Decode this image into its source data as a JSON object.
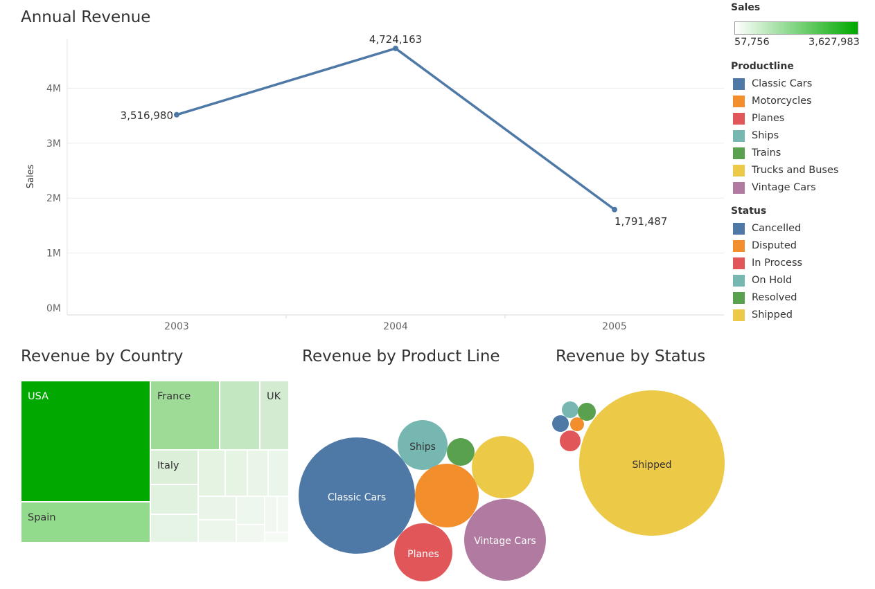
{
  "titles": {
    "annual": "Annual Revenue",
    "country": "Revenue by Country",
    "product": "Revenue by Product Line",
    "status": "Revenue by Status"
  },
  "legend": {
    "sales_title": "Sales",
    "sales_min": "57,756",
    "sales_max": "3,627,983",
    "gradient_colors": [
      "#ffffff",
      "#00a800"
    ],
    "productline_title": "Productline",
    "productline_items": [
      {
        "label": "Classic Cars",
        "color": "#4e79a7"
      },
      {
        "label": "Motorcycles",
        "color": "#f28e2b"
      },
      {
        "label": "Planes",
        "color": "#e15759"
      },
      {
        "label": "Ships",
        "color": "#76b7b2"
      },
      {
        "label": "Trains",
        "color": "#59a14f"
      },
      {
        "label": "Trucks and Buses",
        "color": "#edc948"
      },
      {
        "label": "Vintage Cars",
        "color": "#b07aa1"
      }
    ],
    "status_title": "Status",
    "status_items": [
      {
        "label": "Cancelled",
        "color": "#4e79a7"
      },
      {
        "label": "Disputed",
        "color": "#f28e2b"
      },
      {
        "label": "In Process",
        "color": "#e15759"
      },
      {
        "label": "On Hold",
        "color": "#76b7b2"
      },
      {
        "label": "Resolved",
        "color": "#59a14f"
      },
      {
        "label": "Shipped",
        "color": "#edc948"
      }
    ]
  },
  "chart_data": [
    {
      "type": "line",
      "title": "Annual Revenue",
      "x": [
        "2003",
        "2004",
        "2005"
      ],
      "y": [
        3516980,
        4724163,
        1791487
      ],
      "value_labels": [
        "3,516,980",
        "4,724,163",
        "1,791,487"
      ],
      "ylabel": "Sales",
      "yticks": [
        "0M",
        "1M",
        "2M",
        "3M",
        "4M"
      ],
      "ytick_values": [
        0,
        1000000,
        2000000,
        3000000,
        4000000
      ],
      "ylim": [
        0,
        4900000
      ],
      "color": "#4e79a7",
      "grid": true
    },
    {
      "type": "treemap",
      "title": "Revenue by Country",
      "colors": [
        "#ffffff",
        "#00a800"
      ],
      "labeled": [
        {
          "label": "USA",
          "value": 3627983
        },
        {
          "label": "Spain",
          "value": 1215686
        },
        {
          "label": "France",
          "value": 1110917
        },
        {
          "label": "UK",
          "value": 478880
        },
        {
          "label": "Italy",
          "value": 374674
        }
      ]
    },
    {
      "type": "bubble",
      "title": "Revenue by Product Line",
      "items": [
        {
          "label": "Classic Cars",
          "value": 3919616,
          "color": "#4e79a7",
          "shown": true
        },
        {
          "label": "Ships",
          "value": 714437,
          "color": "#76b7b2",
          "shown": true
        },
        {
          "label": "Trains",
          "value": 226243,
          "color": "#59a14f",
          "shown": false
        },
        {
          "label": "Trucks and Buses",
          "value": 1127790,
          "color": "#edc948",
          "shown": false
        },
        {
          "label": "Motorcycles",
          "value": 1166388,
          "color": "#f28e2b",
          "shown": false
        },
        {
          "label": "Planes",
          "value": 975004,
          "color": "#e15759",
          "shown": true
        },
        {
          "label": "Vintage Cars",
          "value": 1903151,
          "color": "#b07aa1",
          "shown": true
        }
      ]
    },
    {
      "type": "bubble",
      "title": "Revenue by Status",
      "items": [
        {
          "label": "Shipped",
          "value": 9291501,
          "color": "#edc948",
          "shown": true
        },
        {
          "label": "On Hold",
          "value": 178124,
          "color": "#76b7b2",
          "shown": false
        },
        {
          "label": "Resolved",
          "value": 150718,
          "color": "#59a14f",
          "shown": false
        },
        {
          "label": "Cancelled",
          "value": 194487,
          "color": "#4e79a7",
          "shown": false
        },
        {
          "label": "Disputed",
          "value": 72212,
          "color": "#f28e2b",
          "shown": false
        },
        {
          "label": "In Process",
          "value": 144730,
          "color": "#e15759",
          "shown": false
        }
      ]
    }
  ]
}
